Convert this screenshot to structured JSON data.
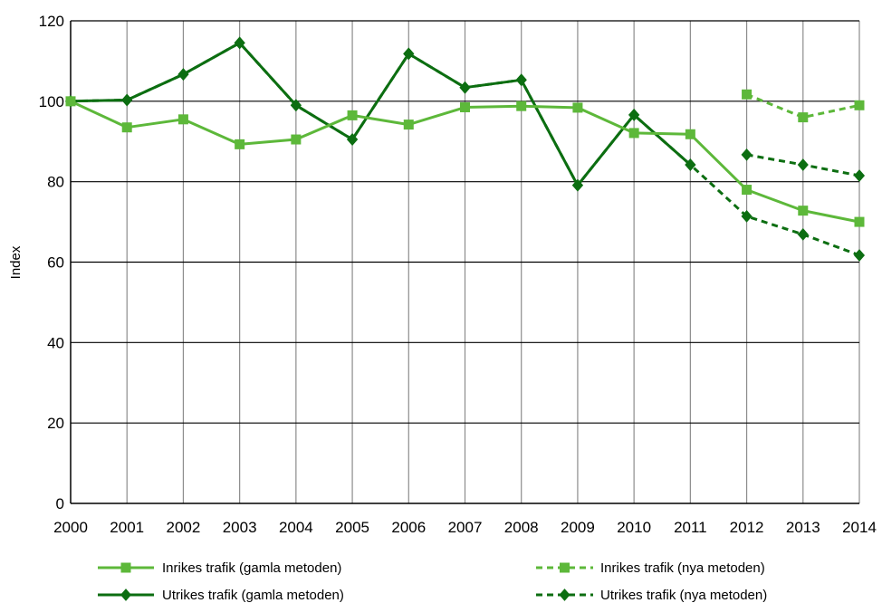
{
  "chart_data": {
    "type": "line",
    "title": "",
    "xlabel": "",
    "ylabel": "Index",
    "x": [
      "2000",
      "2001",
      "2002",
      "2003",
      "2004",
      "2005",
      "2006",
      "2007",
      "2008",
      "2009",
      "2010",
      "2011",
      "2012",
      "2013",
      "2014"
    ],
    "ylim": [
      0,
      120
    ],
    "yticks": [
      0,
      20,
      40,
      60,
      80,
      100,
      120
    ],
    "grid": {
      "horizontal": true,
      "vertical": true
    },
    "legend_position": "bottom",
    "series": [
      {
        "name": "Inrikes trafik (gamla metoden)",
        "color": "#5db83a",
        "dash": "solid",
        "marker": "square",
        "values": [
          100,
          93.5,
          95.5,
          89.3,
          90.5,
          96.5,
          94.2,
          98.5,
          98.8,
          98.4,
          92.1,
          91.8,
          78,
          72.8,
          70
        ]
      },
      {
        "name": "Inrikes trafik (nya metoden)",
        "color": "#5db83a",
        "dash": "dashed",
        "marker": "square",
        "values": [
          null,
          null,
          null,
          null,
          null,
          null,
          null,
          null,
          null,
          null,
          null,
          null,
          101.7,
          96,
          99
        ]
      },
      {
        "name": "Utrikes trafik (gamla metoden)",
        "color": "#0c6e11",
        "dash": "solid",
        "marker": "diamond",
        "values": [
          100,
          100.3,
          106.7,
          114.5,
          99,
          90.5,
          111.8,
          103.4,
          105.3,
          79.1,
          96.6,
          84.2,
          null,
          null,
          null
        ]
      },
      {
        "name": "Utrikes trafik (nya metoden)",
        "color": "#0c6e11",
        "dash": "dashed",
        "marker": "diamond",
        "values": [
          100,
          100.3,
          106.7,
          114.5,
          99,
          90.5,
          111.8,
          103.4,
          105.3,
          79.1,
          96.6,
          84.2,
          71.4,
          66.9,
          61.7
        ],
        "values_new_method": [
          null,
          null,
          null,
          null,
          null,
          null,
          null,
          null,
          null,
          null,
          null,
          null,
          86.7,
          84.2,
          81.5
        ]
      }
    ]
  }
}
